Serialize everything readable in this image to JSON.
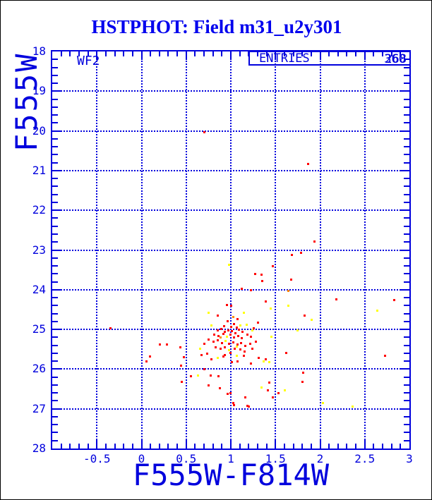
{
  "title": "HSTPHOT: Field m31_u2y301",
  "detector_label": "WF2",
  "entries": {
    "label": "ENTRIES",
    "value_layers": [
      "268",
      "360"
    ]
  },
  "colors": {
    "axis": "#0000dd",
    "title": "#0000ee",
    "background": "#ffffff",
    "outer_border": "#000000",
    "red": "#ff0000",
    "yellow": "#ffff00",
    "orange": "#ff8800"
  },
  "chart_data": {
    "type": "scatter",
    "title": "HSTPHOT: Field m31_u2y301",
    "xlabel": "F555W-F814W",
    "ylabel": "F555W",
    "xlim": [
      -1,
      3
    ],
    "ylim": [
      28,
      18
    ],
    "y_inverted": true,
    "grid": "dotted blue lines at every major tick",
    "legend_position": "none",
    "x_major_ticks": [
      -0.5,
      0,
      0.5,
      1,
      1.5,
      2,
      2.5,
      3
    ],
    "x_tick_labels": [
      "-0.5",
      "0",
      "0.5",
      "1",
      "1.5",
      "2",
      "2.5",
      "3"
    ],
    "x_minor_step": 0.1,
    "y_major_ticks": [
      18,
      19,
      20,
      21,
      22,
      23,
      24,
      25,
      26,
      27,
      28
    ],
    "y_tick_labels": [
      "18",
      "19",
      "20",
      "21",
      "22",
      "23",
      "24",
      "25",
      "26",
      "27",
      "28"
    ],
    "y_minor_step": 0.2,
    "x_gridlines": [
      -0.5,
      0,
      0.5,
      1,
      1.5,
      2,
      2.5
    ],
    "y_gridlines": [
      19,
      20,
      21,
      22,
      23,
      24,
      25,
      26,
      27
    ],
    "series": [
      {
        "name": "red-stars",
        "marker": "square",
        "color_key": "red",
        "points": [
          [
            0.7,
            20.03
          ],
          [
            1.86,
            20.82
          ],
          [
            1.93,
            22.78
          ],
          [
            1.78,
            23.06
          ],
          [
            1.68,
            23.12
          ],
          [
            1.47,
            23.4
          ],
          [
            1.27,
            23.59
          ],
          [
            1.34,
            23.61
          ],
          [
            1.67,
            23.73
          ],
          [
            1.35,
            23.77
          ],
          [
            1.12,
            23.96
          ],
          [
            1.22,
            24.01
          ],
          [
            2.18,
            24.23
          ],
          [
            2.83,
            24.26
          ],
          [
            1.39,
            24.28
          ],
          [
            0.95,
            24.38
          ],
          [
            1.0,
            24.4
          ],
          [
            1.82,
            24.65
          ],
          [
            0.85,
            24.65
          ],
          [
            1.07,
            24.73
          ],
          [
            -0.35,
            24.97
          ],
          [
            0.2,
            25.37
          ],
          [
            0.28,
            25.37
          ],
          [
            0.43,
            25.44
          ],
          [
            0.09,
            25.67
          ],
          [
            0.05,
            25.8
          ],
          [
            1.62,
            25.58
          ],
          [
            2.72,
            25.66
          ],
          [
            0.96,
            24.78
          ],
          [
            1.3,
            24.82
          ],
          [
            0.92,
            24.91
          ],
          [
            1.0,
            24.93
          ],
          [
            1.03,
            24.85
          ],
          [
            1.06,
            24.95
          ],
          [
            1.25,
            24.96
          ],
          [
            0.89,
            24.98
          ],
          [
            0.85,
            25.02
          ],
          [
            0.93,
            25.05
          ],
          [
            0.97,
            25.01
          ],
          [
            1.01,
            25.04
          ],
          [
            1.05,
            25.08
          ],
          [
            1.09,
            25.0
          ],
          [
            1.13,
            25.06
          ],
          [
            0.81,
            25.12
          ],
          [
            0.86,
            25.15
          ],
          [
            0.91,
            25.1
          ],
          [
            0.99,
            25.13
          ],
          [
            1.03,
            25.2
          ],
          [
            1.08,
            25.16
          ],
          [
            1.12,
            25.22
          ],
          [
            1.18,
            25.12
          ],
          [
            1.22,
            25.18
          ],
          [
            0.75,
            25.24
          ],
          [
            0.8,
            25.3
          ],
          [
            0.85,
            25.27
          ],
          [
            0.9,
            25.33
          ],
          [
            0.98,
            25.36
          ],
          [
            1.02,
            25.31
          ],
          [
            1.07,
            25.38
          ],
          [
            1.11,
            25.34
          ],
          [
            1.16,
            25.4
          ],
          [
            1.21,
            25.36
          ],
          [
            1.28,
            25.3
          ],
          [
            0.7,
            25.35
          ],
          [
            0.83,
            25.44
          ],
          [
            0.88,
            25.48
          ],
          [
            0.93,
            25.45
          ],
          [
            1.04,
            25.47
          ],
          [
            1.1,
            25.5
          ],
          [
            1.15,
            25.55
          ],
          [
            1.24,
            25.48
          ],
          [
            0.44,
            25.9
          ],
          [
            0.47,
            25.69
          ],
          [
            0.67,
            25.64
          ],
          [
            0.73,
            25.6
          ],
          [
            0.78,
            25.74
          ],
          [
            0.91,
            25.67
          ],
          [
            0.93,
            25.64
          ],
          [
            0.99,
            25.58
          ],
          [
            1.01,
            25.81
          ],
          [
            1.07,
            25.8
          ],
          [
            1.14,
            25.66
          ],
          [
            1.22,
            25.85
          ],
          [
            1.31,
            25.71
          ],
          [
            1.39,
            25.74
          ],
          [
            1.43,
            26.33
          ],
          [
            1.41,
            26.52
          ],
          [
            0.7,
            25.99
          ],
          [
            0.55,
            26.17
          ],
          [
            0.45,
            26.31
          ],
          [
            0.77,
            26.15
          ],
          [
            0.86,
            26.17
          ],
          [
            0.75,
            26.41
          ],
          [
            0.87,
            26.47
          ],
          [
            0.96,
            26.61
          ],
          [
            0.99,
            26.59
          ],
          [
            1.16,
            26.7
          ],
          [
            1.02,
            26.85
          ],
          [
            1.03,
            26.89
          ],
          [
            1.18,
            26.91
          ],
          [
            1.2,
            26.94
          ],
          [
            1.81,
            26.08
          ],
          [
            1.8,
            26.32
          ],
          [
            1.53,
            26.59
          ],
          [
            1.47,
            26.7
          ]
        ]
      },
      {
        "name": "yellow-stars",
        "marker": "square",
        "color_key": "yellow",
        "points": [
          [
            0.98,
            23.36
          ],
          [
            1.64,
            24.39
          ],
          [
            1.44,
            24.47
          ],
          [
            2.64,
            24.51
          ],
          [
            1.14,
            24.58
          ],
          [
            0.75,
            24.58
          ],
          [
            1.9,
            24.75
          ],
          [
            0.78,
            24.9
          ],
          [
            1.17,
            24.88
          ],
          [
            1.1,
            24.9
          ],
          [
            1.74,
            25.02
          ],
          [
            1.24,
            25.02
          ],
          [
            0.95,
            25.18
          ],
          [
            1.45,
            25.18
          ],
          [
            0.94,
            25.29
          ],
          [
            1.06,
            25.42
          ],
          [
            0.98,
            25.52
          ],
          [
            0.65,
            25.47
          ],
          [
            0.85,
            25.71
          ],
          [
            1.06,
            25.66
          ],
          [
            1.36,
            25.8
          ],
          [
            1.43,
            25.81
          ],
          [
            0.63,
            26.15
          ],
          [
            1.34,
            26.45
          ],
          [
            1.6,
            26.52
          ],
          [
            2.03,
            26.84
          ],
          [
            2.36,
            26.93
          ]
        ]
      },
      {
        "name": "orange-stars",
        "marker": "square",
        "color_key": "orange",
        "points": [
          [
            1.64,
            24.02
          ],
          [
            1.02,
            24.68
          ],
          [
            0.88,
            25.2
          ]
        ]
      }
    ]
  }
}
